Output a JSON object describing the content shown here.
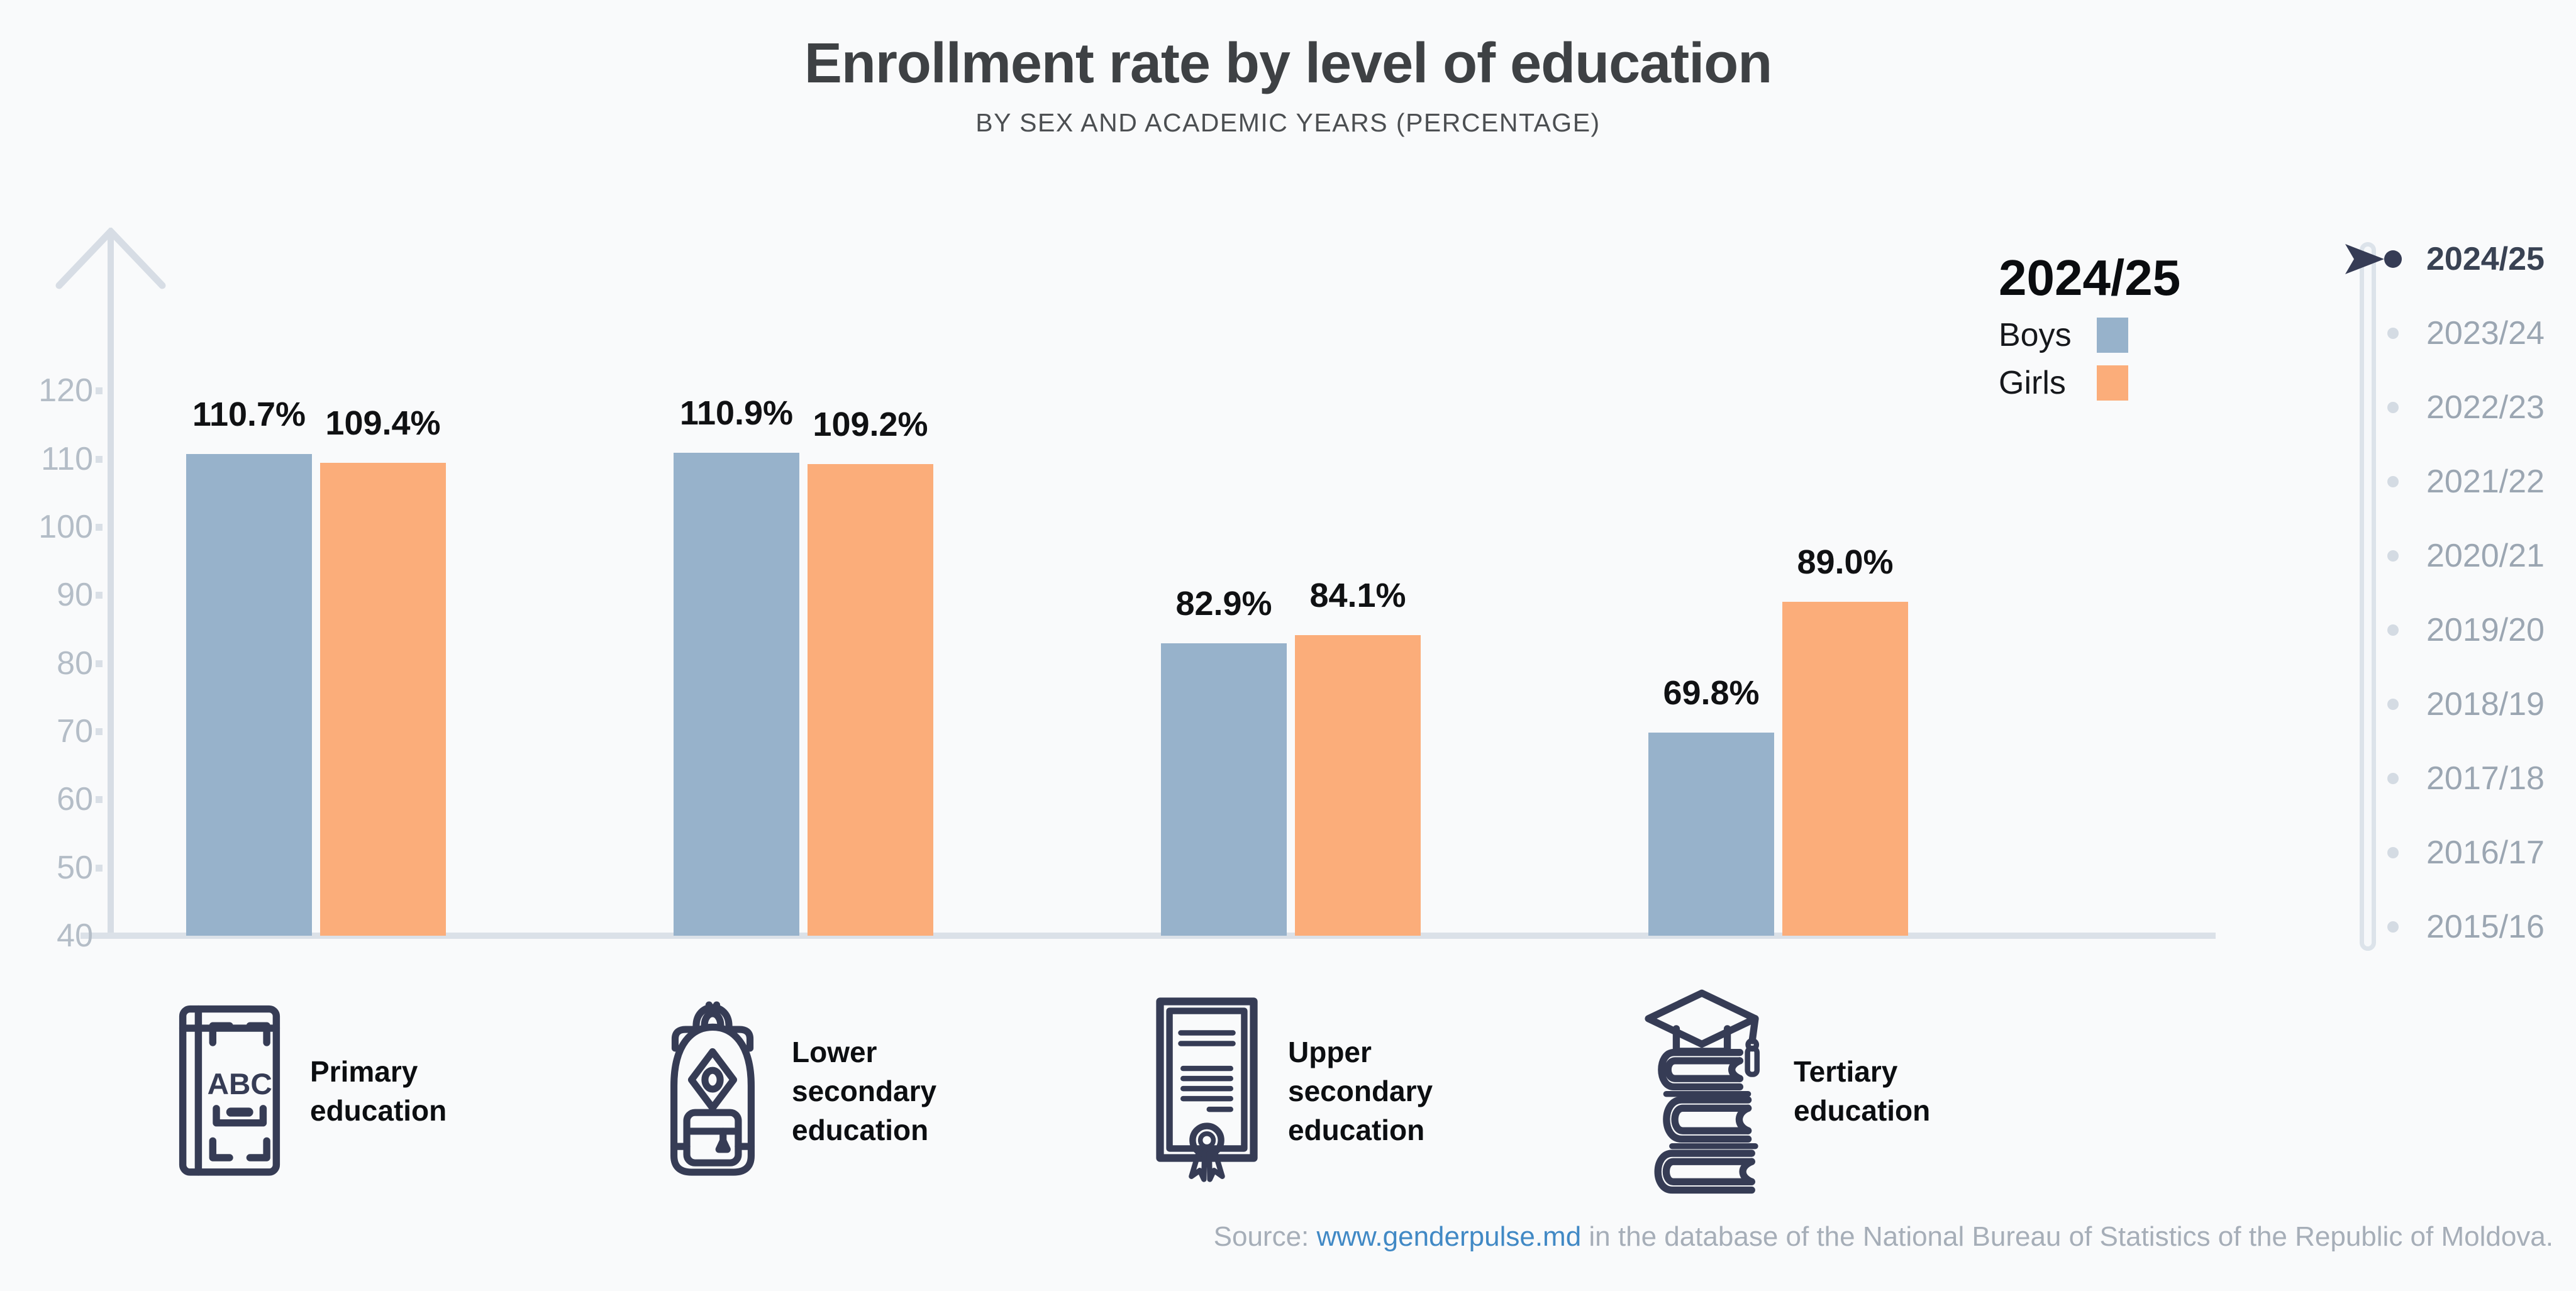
{
  "title": "Enrollment rate by level of education",
  "subtitle": "BY SEX AND ACADEMIC YEARS (PERCENTAGE)",
  "legend": {
    "year_label": "2024/25"
  },
  "chart_data": {
    "type": "bar",
    "title": "Enrollment rate by level of education",
    "subtitle": "BY SEX AND ACADEMIC YEARS (PERCENTAGE)",
    "categories": [
      "Primary education",
      "Lower secondary education",
      "Upper secondary education",
      "Tertiary education"
    ],
    "series": [
      {
        "name": "Boys",
        "color": "#97b2cb",
        "values": [
          110.7,
          110.9,
          82.9,
          69.8
        ],
        "labels": [
          "110.7%",
          "110.9%",
          "82.9%",
          "69.8%"
        ]
      },
      {
        "name": "Girls",
        "color": "#fbad7a",
        "values": [
          109.4,
          109.2,
          84.1,
          89.0
        ],
        "labels": [
          "109.4%",
          "109.2%",
          "84.1%",
          "89.0%"
        ]
      }
    ],
    "unit": "percent",
    "baseline_value": 40,
    "ylim": [
      40,
      128
    ],
    "yticks": [
      40,
      50,
      60,
      70,
      80,
      90,
      100,
      110,
      120
    ],
    "grid": false,
    "legend_position": "top-right"
  },
  "categories": [
    {
      "name": "Primary education",
      "display": "Primary\neducation",
      "icon": "abc-book-icon"
    },
    {
      "name": "Lower secondary education",
      "display": "Lower\nsecondary\neducation",
      "icon": "backpack-icon"
    },
    {
      "name": "Upper secondary education",
      "display": "Upper\nsecondary\neducation",
      "icon": "diploma-icon"
    },
    {
      "name": "Tertiary education",
      "display": "Tertiary\neducation",
      "icon": "graduation-books-icon"
    }
  ],
  "timeline": {
    "selected": "2024/25",
    "years": [
      "2024/25",
      "2023/24",
      "2022/23",
      "2021/22",
      "2020/21",
      "2019/20",
      "2018/19",
      "2017/18",
      "2016/17",
      "2015/16"
    ]
  },
  "footer": {
    "source_prefix": "Source: ",
    "source_link": "www.genderpulse.md",
    "source_suffix": " in the database of the National Bureau of Statistics of the Republic of Moldova."
  },
  "colors": {
    "boys": "#97b2cb",
    "girls": "#fbad7a",
    "axis": "#d7dde5",
    "tick_label": "#b4bdc7",
    "icon_navy": "#363c55",
    "timeline_inactive": "#9ba6b2",
    "timeline_active": "#394253",
    "link_blue": "#4189c5",
    "background": "#f9fafb"
  }
}
